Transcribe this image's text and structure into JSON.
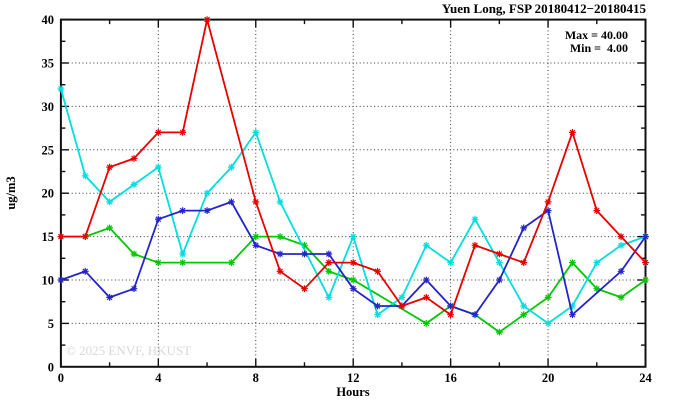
{
  "header": {
    "title": "Yuen Long, FSP 20180412−20180415"
  },
  "legend": {
    "max_line": "Max = 40.00",
    "min_line": "Min =  4.00"
  },
  "watermark": {
    "text": "© 2025 ENVF, HKUST"
  },
  "chart_data": {
    "type": "line",
    "title": "Yuen Long, FSP 20180412−20180415",
    "xlabel": "Hours",
    "ylabel": "ug/m3",
    "xlim": [
      0,
      24
    ],
    "ylim": [
      0,
      40
    ],
    "grid": "dotted, at x multiples of 4 and y multiples of 5",
    "legend_position": "top-right, text only",
    "x_major_ticks": [
      0,
      4,
      8,
      12,
      16,
      20,
      24
    ],
    "x_minor_ticks": [
      2,
      6,
      10,
      14,
      18,
      22
    ],
    "y_major_ticks": [
      0,
      5,
      10,
      15,
      20,
      25,
      30,
      35,
      40
    ],
    "y_minor_ticks": [
      2.5,
      7.5,
      12.5,
      17.5,
      22.5,
      27.5,
      32.5,
      37.5
    ],
    "x": [
      0,
      1,
      2,
      3,
      4,
      5,
      6,
      7,
      8,
      9,
      10,
      11,
      12,
      13,
      14,
      15,
      16,
      17,
      18,
      19,
      20,
      21,
      22,
      23,
      24
    ],
    "series": [
      {
        "name": "green",
        "color": "#00c800",
        "values": [
          15,
          15,
          16,
          13,
          12,
          12,
          null,
          12,
          15,
          15,
          14,
          11,
          10,
          null,
          null,
          5,
          7,
          6,
          4,
          6,
          8,
          12,
          9,
          8,
          10
        ]
      },
      {
        "name": "cyan",
        "color": "#00dede",
        "values": [
          32,
          22,
          19,
          21,
          23,
          13,
          20,
          23,
          27,
          19,
          null,
          8,
          15,
          6,
          8,
          14,
          12,
          17,
          12,
          7,
          5,
          7,
          12,
          14,
          15
        ]
      },
      {
        "name": "blue",
        "color": "#2424cc",
        "values": [
          10,
          11,
          8,
          9,
          17,
          18,
          18,
          19,
          14,
          13,
          13,
          13,
          9,
          7,
          7,
          10,
          7,
          6,
          10,
          16,
          18,
          6,
          null,
          11,
          15
        ]
      },
      {
        "name": "red",
        "color": "#e80000",
        "values": [
          15,
          15,
          23,
          24,
          27,
          27,
          40,
          null,
          19,
          11,
          9,
          12,
          12,
          11,
          7,
          8,
          6,
          14,
          13,
          12,
          19,
          27,
          18,
          15,
          12
        ]
      }
    ],
    "annotations": {
      "max": 40.0,
      "min": 4.0
    }
  }
}
